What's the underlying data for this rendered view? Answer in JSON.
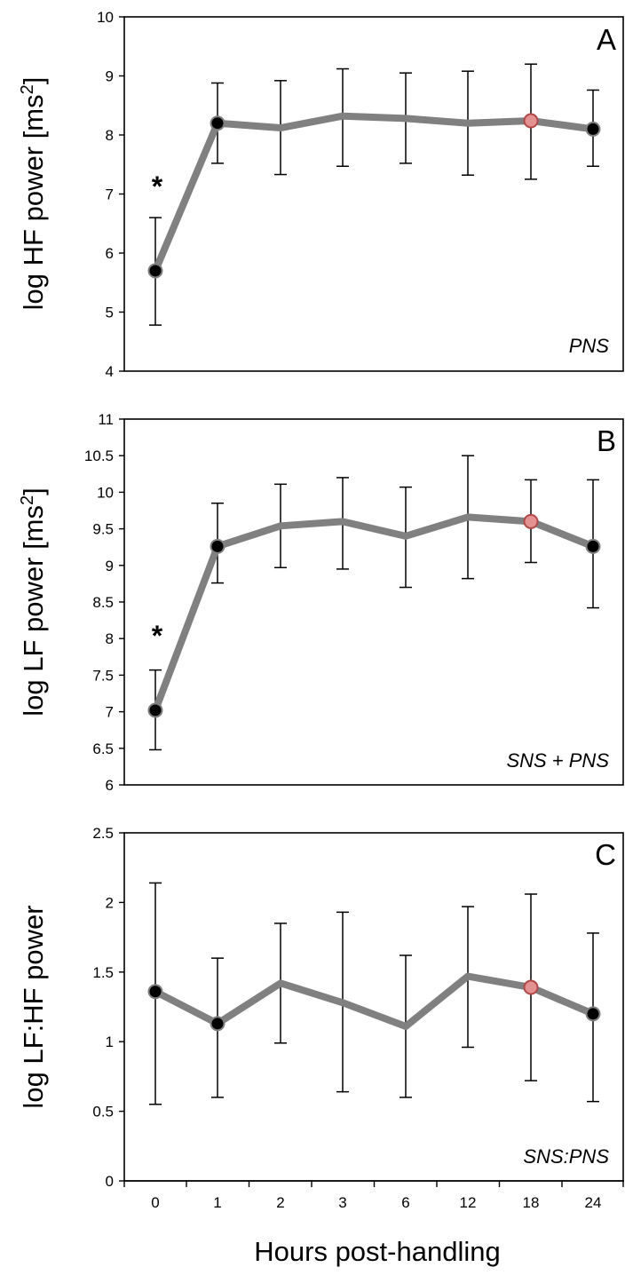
{
  "figure": {
    "x_axis_title": "Hours post-handling",
    "categories": [
      "0",
      "1",
      "2",
      "3",
      "6",
      "12",
      "18",
      "24"
    ]
  },
  "colors": {
    "line": "#808080",
    "point_default": "#000000",
    "point_highlight": "#E39191",
    "error_bar": "#000000"
  },
  "chart_data": [
    {
      "type": "line",
      "panel": "A",
      "note": "PNS",
      "ylabel_main": "log HF power [ms",
      "ylabel_sup": "2",
      "ylabel_end": "]",
      "ylim": [
        4,
        10
      ],
      "yticks": [
        4,
        5,
        6,
        7,
        8,
        9,
        10
      ],
      "ytick_labels": [
        "4",
        "5",
        "6",
        "7",
        "8",
        "9",
        "10"
      ],
      "categories": [
        "0",
        "1",
        "2",
        "3",
        "6",
        "12",
        "18",
        "24"
      ],
      "series": [
        {
          "values": [
            5.7,
            8.2,
            8.12,
            8.32,
            8.28,
            8.2,
            8.24,
            8.1
          ],
          "err_low": [
            4.78,
            7.52,
            7.33,
            7.47,
            7.52,
            7.32,
            7.25,
            7.47
          ],
          "err_high": [
            6.6,
            8.88,
            8.92,
            9.12,
            9.05,
            9.08,
            9.2,
            8.76
          ],
          "markers": [
            true,
            true,
            false,
            false,
            false,
            false,
            true,
            true
          ],
          "highlight": [
            false,
            false,
            false,
            false,
            false,
            false,
            true,
            false
          ]
        }
      ],
      "annotations": [
        {
          "text": "*",
          "x": "0",
          "y": 7.2
        }
      ]
    },
    {
      "type": "line",
      "panel": "B",
      "note": "SNS + PNS",
      "ylabel_main": "log LF power [ms",
      "ylabel_sup": "2",
      "ylabel_end": "]",
      "ylim": [
        6,
        11
      ],
      "yticks": [
        6,
        6.5,
        7,
        7.5,
        8,
        8.5,
        9,
        9.5,
        10,
        10.5,
        11
      ],
      "ytick_labels": [
        "6",
        "6.5",
        "7",
        "7.5",
        "8",
        "8.5",
        "9",
        "9.5",
        "10",
        "10.5",
        "11"
      ],
      "categories": [
        "0",
        "1",
        "2",
        "3",
        "6",
        "12",
        "18",
        "24"
      ],
      "series": [
        {
          "values": [
            7.02,
            9.26,
            9.54,
            9.6,
            9.4,
            9.66,
            9.6,
            9.26
          ],
          "err_low": [
            6.48,
            8.76,
            8.97,
            8.95,
            8.7,
            8.82,
            9.04,
            8.42
          ],
          "err_high": [
            7.57,
            9.85,
            10.11,
            10.2,
            10.07,
            10.5,
            10.17,
            10.17
          ],
          "markers": [
            true,
            true,
            false,
            false,
            false,
            false,
            true,
            true
          ],
          "highlight": [
            false,
            false,
            false,
            false,
            false,
            false,
            true,
            false
          ]
        }
      ],
      "annotations": [
        {
          "text": "*",
          "x": "0",
          "y": 8.1
        }
      ]
    },
    {
      "type": "line",
      "panel": "C",
      "note": "SNS:PNS",
      "ylabel_main": "log LF:HF power",
      "ylabel_sup": "",
      "ylabel_end": "",
      "ylim": [
        0,
        2.5
      ],
      "yticks": [
        0,
        0.5,
        1,
        1.5,
        2,
        2.5
      ],
      "ytick_labels": [
        "0",
        "0.5",
        "1",
        "1.5",
        "2",
        "2.5"
      ],
      "categories": [
        "0",
        "1",
        "2",
        "3",
        "6",
        "12",
        "18",
        "24"
      ],
      "series": [
        {
          "values": [
            1.36,
            1.13,
            1.42,
            1.28,
            1.11,
            1.47,
            1.39,
            1.2
          ],
          "err_low": [
            0.55,
            0.6,
            0.99,
            0.64,
            0.6,
            0.96,
            0.72,
            0.57
          ],
          "err_high": [
            2.14,
            1.6,
            1.85,
            1.93,
            1.62,
            1.97,
            2.06,
            1.78
          ],
          "markers": [
            true,
            true,
            false,
            false,
            false,
            false,
            true,
            true
          ],
          "highlight": [
            false,
            false,
            false,
            false,
            false,
            false,
            true,
            false
          ]
        }
      ],
      "annotations": []
    }
  ]
}
